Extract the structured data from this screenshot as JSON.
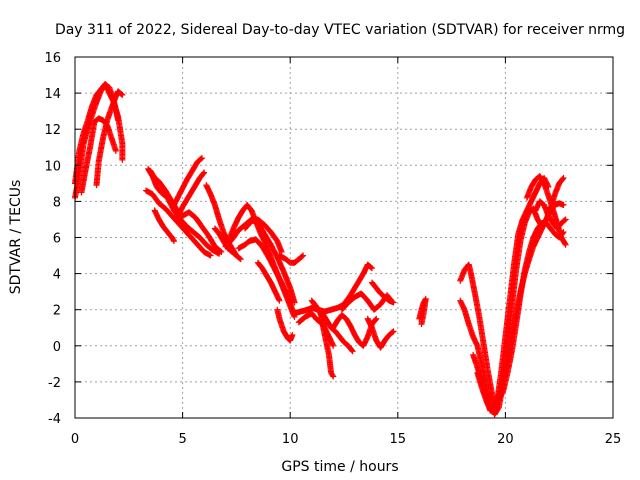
{
  "chart_data": {
    "type": "scatter",
    "title": "Day 311 of 2022, Sidereal Day-to-day VTEC variation (SDTVAR) for receiver nrmg",
    "xlabel": "GPS time / hours",
    "ylabel": "SDTVAR / TECUs",
    "xlim": [
      0,
      25
    ],
    "ylim": [
      -4,
      16
    ],
    "x_ticks": [
      0,
      5,
      10,
      15,
      20,
      25
    ],
    "y_ticks": [
      -4,
      -2,
      0,
      2,
      4,
      6,
      8,
      10,
      12,
      14,
      16
    ],
    "grid": true,
    "marker": "+",
    "series_color": "#ff0000",
    "traces": [
      [
        [
          0.0,
          8.2
        ],
        [
          0.2,
          9.5
        ],
        [
          0.4,
          11.2
        ],
        [
          0.6,
          12.1
        ],
        [
          0.8,
          12.8
        ],
        [
          1.0,
          13.5
        ],
        [
          1.2,
          14.1
        ],
        [
          1.4,
          14.5
        ],
        [
          1.6,
          14.3
        ],
        [
          1.8,
          13.6
        ],
        [
          2.0,
          12.5
        ]
      ],
      [
        [
          0.0,
          9.0
        ],
        [
          0.2,
          10.8
        ],
        [
          0.4,
          11.8
        ],
        [
          0.6,
          12.5
        ],
        [
          0.8,
          13.3
        ],
        [
          1.0,
          13.9
        ],
        [
          1.2,
          14.2
        ],
        [
          1.4,
          14.5
        ],
        [
          1.6,
          14.0
        ],
        [
          1.8,
          13.5
        ],
        [
          2.0,
          12.7
        ],
        [
          2.2,
          11.2
        ],
        [
          2.2,
          10.3
        ]
      ],
      [
        [
          0.3,
          8.5
        ],
        [
          0.5,
          9.8
        ],
        [
          0.7,
          11.0
        ],
        [
          0.9,
          12.4
        ],
        [
          1.1,
          12.6
        ],
        [
          1.3,
          12.5
        ],
        [
          1.5,
          12.2
        ],
        [
          1.7,
          11.5
        ],
        [
          1.9,
          10.8
        ]
      ],
      [
        [
          1.0,
          8.9
        ],
        [
          1.1,
          10.2
        ],
        [
          1.3,
          11.5
        ],
        [
          1.5,
          12.5
        ],
        [
          1.7,
          13.2
        ],
        [
          1.9,
          13.8
        ],
        [
          2.0,
          14.1
        ],
        [
          2.2,
          13.9
        ]
      ],
      [
        [
          3.4,
          9.8
        ],
        [
          3.6,
          9.4
        ],
        [
          3.8,
          8.8
        ],
        [
          4.0,
          8.5
        ],
        [
          4.3,
          8.2
        ],
        [
          4.6,
          7.5
        ],
        [
          4.9,
          7.0
        ],
        [
          5.2,
          6.6
        ],
        [
          5.5,
          6.3
        ],
        [
          5.8,
          6.0
        ],
        [
          6.1,
          5.6
        ],
        [
          6.4,
          5.3
        ],
        [
          6.7,
          5.1
        ]
      ],
      [
        [
          3.5,
          9.7
        ],
        [
          3.7,
          9.3
        ],
        [
          3.9,
          9.1
        ],
        [
          4.2,
          8.6
        ],
        [
          4.5,
          8.0
        ],
        [
          4.8,
          7.4
        ],
        [
          5.0,
          7.2
        ],
        [
          5.3,
          7.4
        ],
        [
          5.6,
          7.1
        ],
        [
          5.9,
          6.6
        ],
        [
          6.2,
          6.1
        ],
        [
          6.5,
          5.5
        ],
        [
          6.8,
          5.2
        ]
      ],
      [
        [
          3.3,
          8.6
        ],
        [
          3.6,
          8.4
        ],
        [
          3.9,
          7.9
        ],
        [
          4.2,
          7.6
        ],
        [
          4.5,
          7.2
        ],
        [
          4.8,
          6.8
        ],
        [
          5.1,
          6.4
        ],
        [
          5.4,
          6.0
        ],
        [
          5.7,
          5.6
        ],
        [
          6.0,
          5.2
        ],
        [
          6.3,
          5.0
        ]
      ],
      [
        [
          3.7,
          7.5
        ],
        [
          3.9,
          7.0
        ],
        [
          4.1,
          6.6
        ],
        [
          4.3,
          6.3
        ],
        [
          4.5,
          6.0
        ],
        [
          4.6,
          5.8
        ]
      ],
      [
        [
          4.6,
          7.8
        ],
        [
          4.9,
          8.5
        ],
        [
          5.2,
          9.2
        ],
        [
          5.5,
          9.8
        ],
        [
          5.7,
          10.2
        ],
        [
          5.9,
          10.4
        ]
      ],
      [
        [
          4.7,
          7.0
        ],
        [
          5.0,
          7.7
        ],
        [
          5.3,
          8.3
        ],
        [
          5.6,
          8.9
        ],
        [
          5.8,
          9.3
        ],
        [
          6.0,
          9.6
        ]
      ],
      [
        [
          6.1,
          8.9
        ],
        [
          6.3,
          8.4
        ],
        [
          6.5,
          7.8
        ],
        [
          6.7,
          7.0
        ],
        [
          6.9,
          6.3
        ],
        [
          7.1,
          5.8
        ],
        [
          7.3,
          5.4
        ],
        [
          7.5,
          5.0
        ],
        [
          7.7,
          4.8
        ]
      ],
      [
        [
          6.5,
          6.5
        ],
        [
          6.7,
          6.2
        ],
        [
          6.9,
          5.8
        ],
        [
          7.1,
          5.4
        ],
        [
          7.3,
          5.2
        ],
        [
          7.5,
          5.0
        ]
      ],
      [
        [
          7.2,
          6.0
        ],
        [
          7.4,
          6.6
        ],
        [
          7.6,
          7.1
        ],
        [
          7.8,
          7.5
        ],
        [
          8.0,
          7.8
        ],
        [
          8.2,
          7.5
        ],
        [
          8.4,
          6.9
        ],
        [
          8.6,
          6.3
        ],
        [
          8.8,
          5.8
        ],
        [
          9.0,
          5.2
        ],
        [
          9.2,
          4.6
        ],
        [
          9.4,
          4.0
        ],
        [
          9.6,
          3.4
        ],
        [
          9.8,
          2.8
        ],
        [
          10.0,
          2.2
        ],
        [
          10.2,
          1.6
        ]
      ],
      [
        [
          7.0,
          5.5
        ],
        [
          7.3,
          5.9
        ],
        [
          7.6,
          6.4
        ],
        [
          7.9,
          6.7
        ],
        [
          8.2,
          7.0
        ],
        [
          8.5,
          6.8
        ],
        [
          8.8,
          6.2
        ],
        [
          9.1,
          5.6
        ],
        [
          9.4,
          4.9
        ],
        [
          9.7,
          4.1
        ],
        [
          10.0,
          3.2
        ],
        [
          10.2,
          2.4
        ]
      ],
      [
        [
          7.6,
          5.4
        ],
        [
          7.9,
          5.6
        ],
        [
          8.1,
          5.8
        ],
        [
          8.4,
          5.9
        ],
        [
          8.7,
          5.5
        ],
        [
          9.0,
          4.9
        ],
        [
          9.3,
          4.2
        ],
        [
          9.6,
          3.5
        ],
        [
          9.9,
          2.7
        ],
        [
          10.1,
          2.0
        ]
      ],
      [
        [
          7.9,
          6.5
        ],
        [
          8.2,
          6.9
        ],
        [
          8.5,
          7.0
        ],
        [
          8.8,
          6.7
        ],
        [
          9.1,
          6.3
        ],
        [
          9.4,
          5.8
        ],
        [
          9.6,
          5.2
        ]
      ],
      [
        [
          8.5,
          4.6
        ],
        [
          8.7,
          4.3
        ],
        [
          8.9,
          3.9
        ],
        [
          9.1,
          3.5
        ],
        [
          9.3,
          3.0
        ],
        [
          9.5,
          2.5
        ]
      ],
      [
        [
          9.4,
          2.0
        ],
        [
          9.5,
          1.5
        ],
        [
          9.7,
          0.8
        ],
        [
          9.9,
          0.4
        ],
        [
          10.0,
          0.3
        ],
        [
          10.1,
          0.6
        ]
      ],
      [
        [
          9.5,
          5.0
        ],
        [
          9.8,
          4.8
        ],
        [
          10.0,
          4.6
        ],
        [
          10.2,
          4.6
        ],
        [
          10.4,
          4.8
        ],
        [
          10.6,
          5.0
        ]
      ],
      [
        [
          10.2,
          1.8
        ],
        [
          10.5,
          1.9
        ],
        [
          10.8,
          2.0
        ],
        [
          11.0,
          2.1
        ],
        [
          11.3,
          2.0
        ],
        [
          11.6,
          1.9
        ],
        [
          11.9,
          2.0
        ],
        [
          12.2,
          2.1
        ],
        [
          12.5,
          2.3
        ],
        [
          12.8,
          2.8
        ],
        [
          13.1,
          3.4
        ],
        [
          13.4,
          4.0
        ],
        [
          13.6,
          4.5
        ],
        [
          13.8,
          4.3
        ]
      ],
      [
        [
          10.4,
          1.3
        ],
        [
          10.7,
          1.6
        ],
        [
          11.0,
          1.8
        ],
        [
          11.2,
          1.5
        ],
        [
          11.5,
          1.2
        ],
        [
          11.8,
          -0.5
        ],
        [
          11.9,
          -1.5
        ],
        [
          12.0,
          -1.7
        ]
      ],
      [
        [
          11.0,
          2.5
        ],
        [
          11.2,
          2.2
        ],
        [
          11.4,
          1.8
        ],
        [
          11.6,
          1.0
        ],
        [
          11.8,
          0.5
        ],
        [
          12.0,
          0.0
        ]
      ],
      [
        [
          11.5,
          1.8
        ],
        [
          11.7,
          1.4
        ],
        [
          11.9,
          1.0
        ],
        [
          12.1,
          0.8
        ],
        [
          12.3,
          0.5
        ],
        [
          12.5,
          0.2
        ],
        [
          12.7,
          0.0
        ],
        [
          12.9,
          -0.3
        ]
      ],
      [
        [
          12.0,
          1.0
        ],
        [
          12.2,
          1.4
        ],
        [
          12.4,
          1.7
        ],
        [
          12.6,
          1.5
        ],
        [
          12.8,
          1.1
        ],
        [
          13.0,
          0.6
        ],
        [
          13.2,
          0.2
        ],
        [
          13.4,
          0.0
        ],
        [
          13.6,
          0.5
        ],
        [
          13.8,
          1.2
        ],
        [
          14.0,
          1.5
        ]
      ],
      [
        [
          12.4,
          2.0
        ],
        [
          12.7,
          2.4
        ],
        [
          13.0,
          2.7
        ],
        [
          13.3,
          2.9
        ],
        [
          13.6,
          2.5
        ],
        [
          13.9,
          2.0
        ],
        [
          14.2,
          2.3
        ],
        [
          14.5,
          2.8
        ],
        [
          14.7,
          2.5
        ]
      ],
      [
        [
          13.6,
          1.5
        ],
        [
          13.8,
          1.0
        ],
        [
          14.0,
          0.3
        ],
        [
          14.2,
          -0.1
        ],
        [
          14.4,
          0.3
        ],
        [
          14.6,
          0.6
        ],
        [
          14.8,
          0.8
        ]
      ],
      [
        [
          13.8,
          3.5
        ],
        [
          14.0,
          3.2
        ],
        [
          14.2,
          2.9
        ],
        [
          14.4,
          2.7
        ],
        [
          14.6,
          2.5
        ],
        [
          14.8,
          2.4
        ]
      ],
      [
        [
          16.0,
          1.5
        ],
        [
          16.1,
          2.0
        ],
        [
          16.2,
          2.4
        ],
        [
          16.3,
          2.6
        ],
        [
          16.2,
          1.8
        ],
        [
          16.1,
          1.2
        ]
      ],
      [
        [
          17.9,
          3.6
        ],
        [
          18.1,
          4.2
        ],
        [
          18.3,
          4.5
        ],
        [
          18.4,
          4.0
        ],
        [
          18.6,
          2.8
        ],
        [
          18.8,
          1.5
        ],
        [
          19.0,
          0.0
        ],
        [
          19.2,
          -1.5
        ],
        [
          19.4,
          -2.8
        ],
        [
          19.5,
          -3.6
        ],
        [
          19.6,
          -3.2
        ],
        [
          19.8,
          -1.5
        ],
        [
          20.0,
          0.5
        ],
        [
          20.2,
          2.5
        ],
        [
          20.4,
          4.5
        ],
        [
          20.6,
          6.2
        ],
        [
          20.8,
          7.0
        ],
        [
          21.0,
          7.5
        ],
        [
          21.2,
          8.0
        ],
        [
          21.4,
          8.5
        ],
        [
          21.6,
          9.0
        ],
        [
          21.8,
          9.3
        ],
        [
          22.0,
          8.8
        ]
      ],
      [
        [
          17.9,
          2.5
        ],
        [
          18.1,
          2.0
        ],
        [
          18.3,
          1.2
        ],
        [
          18.5,
          0.5
        ],
        [
          18.7,
          0.0
        ],
        [
          18.9,
          -1.0
        ],
        [
          19.1,
          -2.2
        ],
        [
          19.3,
          -3.3
        ],
        [
          19.5,
          -3.8
        ],
        [
          19.7,
          -3.4
        ],
        [
          19.9,
          -2.0
        ],
        [
          20.1,
          0.0
        ],
        [
          20.3,
          2.2
        ],
        [
          20.5,
          4.2
        ],
        [
          20.7,
          5.8
        ],
        [
          20.9,
          6.8
        ],
        [
          21.1,
          7.4
        ],
        [
          21.3,
          7.6
        ],
        [
          21.5,
          7.0
        ],
        [
          21.7,
          6.6
        ],
        [
          21.9,
          7.0
        ],
        [
          22.1,
          7.6
        ],
        [
          22.3,
          8.4
        ],
        [
          22.5,
          9.0
        ],
        [
          22.7,
          9.3
        ]
      ],
      [
        [
          18.5,
          -0.5
        ],
        [
          18.7,
          -1.2
        ],
        [
          18.9,
          -2.0
        ],
        [
          19.1,
          -2.8
        ],
        [
          19.3,
          -3.5
        ],
        [
          19.5,
          -3.6
        ],
        [
          19.7,
          -3.0
        ],
        [
          19.9,
          -2.5
        ],
        [
          20.1,
          -1.5
        ],
        [
          20.3,
          -0.3
        ],
        [
          20.5,
          1.2
        ],
        [
          20.7,
          2.8
        ],
        [
          20.9,
          4.2
        ],
        [
          21.1,
          5.2
        ],
        [
          21.3,
          6.0
        ],
        [
          21.5,
          6.5
        ],
        [
          21.7,
          6.8
        ],
        [
          21.9,
          6.8
        ],
        [
          22.1,
          6.5
        ],
        [
          22.3,
          6.2
        ],
        [
          22.5,
          6.0
        ],
        [
          22.7,
          6.3
        ]
      ],
      [
        [
          18.7,
          -1.5
        ],
        [
          18.9,
          -2.3
        ],
        [
          19.1,
          -3.0
        ],
        [
          19.3,
          -3.6
        ],
        [
          19.5,
          -3.4
        ],
        [
          19.7,
          -2.8
        ],
        [
          19.9,
          -2.0
        ],
        [
          20.1,
          -0.8
        ],
        [
          20.3,
          0.6
        ],
        [
          20.5,
          1.8
        ],
        [
          20.7,
          3.0
        ],
        [
          20.9,
          4.0
        ],
        [
          21.1,
          4.8
        ],
        [
          21.3,
          5.5
        ],
        [
          21.5,
          6.0
        ],
        [
          21.7,
          6.5
        ],
        [
          21.9,
          7.0
        ],
        [
          22.1,
          7.5
        ],
        [
          22.3,
          7.8
        ],
        [
          22.5,
          7.9
        ],
        [
          22.7,
          7.8
        ]
      ],
      [
        [
          21.4,
          7.5
        ],
        [
          21.6,
          8.0
        ],
        [
          21.8,
          7.8
        ],
        [
          22.0,
          7.2
        ],
        [
          22.2,
          6.8
        ],
        [
          22.4,
          6.5
        ],
        [
          22.6,
          6.8
        ],
        [
          22.8,
          7.0
        ]
      ],
      [
        [
          21.0,
          8.2
        ],
        [
          21.2,
          8.8
        ],
        [
          21.4,
          9.2
        ],
        [
          21.6,
          9.4
        ],
        [
          21.8,
          9.0
        ],
        [
          22.0,
          8.3
        ],
        [
          22.2,
          7.6
        ],
        [
          22.4,
          6.8
        ],
        [
          22.6,
          6.0
        ],
        [
          22.8,
          5.6
        ]
      ]
    ]
  }
}
